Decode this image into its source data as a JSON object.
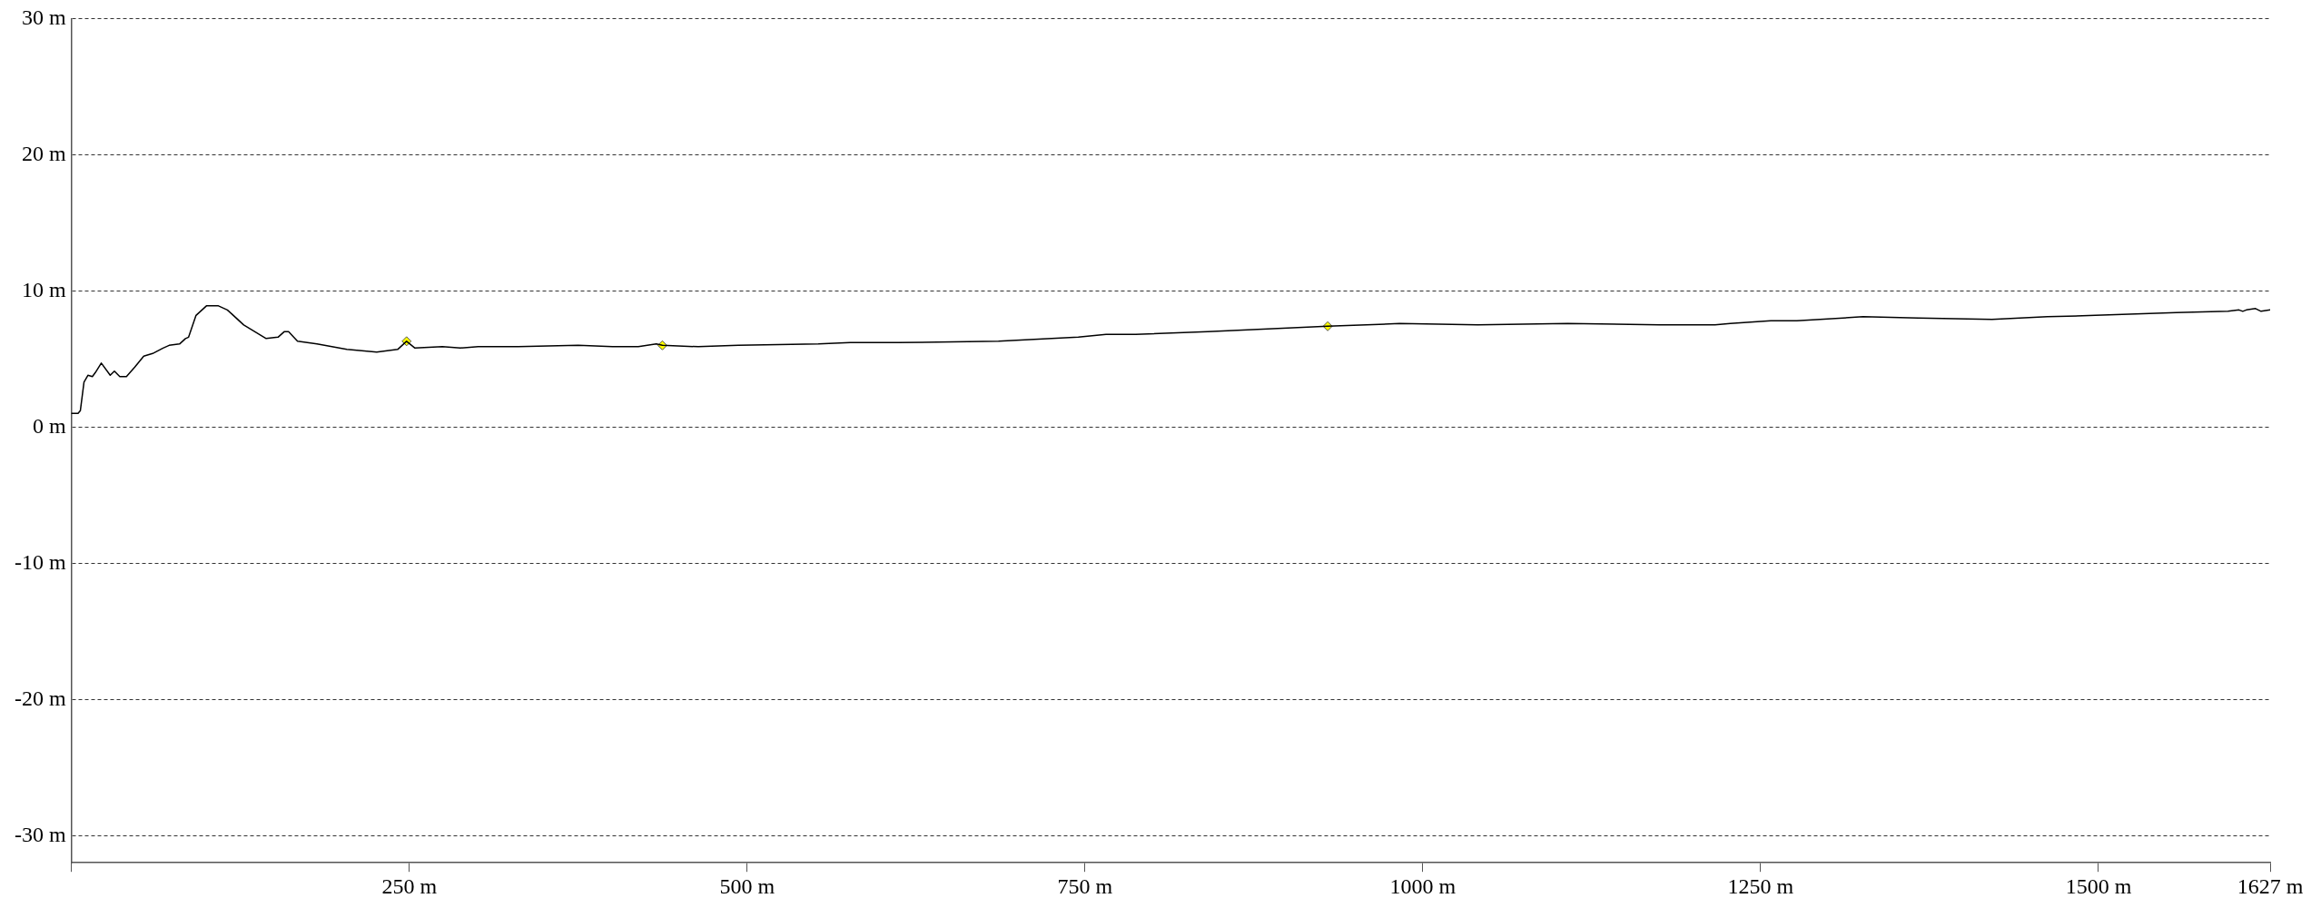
{
  "chart_data": {
    "type": "line",
    "xlim": [
      0,
      1627
    ],
    "ylim": [
      -32,
      30
    ],
    "xticks": [
      {
        "value": 0,
        "label": null
      },
      {
        "value": 250,
        "label": "250 m"
      },
      {
        "value": 500,
        "label": "500 m"
      },
      {
        "value": 750,
        "label": "750 m"
      },
      {
        "value": 1000,
        "label": "1000 m"
      },
      {
        "value": 1250,
        "label": "1250 m"
      },
      {
        "value": 1500,
        "label": "1500 m"
      },
      {
        "value": 1627,
        "label": "1627 m"
      }
    ],
    "yticks": [
      {
        "value": 30,
        "label": "30 m"
      },
      {
        "value": 20,
        "label": "20 m"
      },
      {
        "value": 10,
        "label": "10 m"
      },
      {
        "value": 0,
        "label": "0 m"
      },
      {
        "value": -10,
        "label": "-10 m"
      },
      {
        "value": -20,
        "label": "-20 m"
      },
      {
        "value": -30,
        "label": "-30 m"
      }
    ],
    "grid": "y",
    "legend": false,
    "marker": "none",
    "line_style": "solid",
    "series": [
      {
        "type": "line",
        "color": "#000000",
        "x": [
          0,
          4.9,
          6.6,
          9.3,
          12.2,
          15.5,
          17.7,
          22.1,
          28.7,
          31.8,
          35.8,
          40.7,
          46.9,
          53.5,
          60.1,
          67.8,
          72.3,
          80,
          84.4,
          86.7,
          92.2,
          99.9,
          108.8,
          115.4,
          127.5,
          144.1,
          152.9,
          157.4,
          160.7,
          167.3,
          181.7,
          203.8,
          225.9,
          241.4,
          248,
          254.2,
          274.5,
          287.8,
          301,
          330.6,
          375,
          400.3,
          419.5,
          432.8,
          437.3,
          463.9,
          493.4,
          552.7,
          576.3,
          611.9,
          686,
          745.1,
          765.6,
          787.5,
          840.8,
          929.6,
          982.8,
          1040.6,
          1107.2,
          1175.3,
          1216.2,
          1227.5,
          1257.5,
          1276.8,
          1325.7,
          1366.7,
          1421.2,
          1462.2,
          1497.6,
          1557.6,
          1595.8,
          1604,
          1606.7,
          1609.4,
          1616.2,
          1620.3,
          1627
        ],
        "values": [
          1.0,
          1.0,
          1.2,
          3.3,
          3.8,
          3.7,
          4.0,
          4.7,
          3.8,
          4.1,
          3.7,
          3.7,
          4.4,
          5.2,
          5.4,
          5.8,
          6.0,
          6.1,
          6.5,
          6.6,
          8.2,
          8.9,
          8.9,
          8.6,
          7.5,
          6.5,
          6.6,
          7.0,
          7.0,
          6.3,
          6.1,
          5.7,
          5.5,
          5.7,
          6.3,
          5.8,
          5.9,
          5.8,
          5.9,
          5.9,
          6.0,
          5.9,
          5.9,
          6.1,
          6.0,
          5.9,
          6.0,
          6.1,
          6.2,
          6.2,
          6.3,
          6.6,
          6.8,
          6.8,
          7.0,
          7.4,
          7.6,
          7.5,
          7.6,
          7.5,
          7.5,
          7.6,
          7.8,
          7.8,
          8.1,
          8.0,
          7.9,
          8.1,
          8.2,
          8.4,
          8.5,
          8.6,
          8.5,
          8.6,
          8.7,
          8.5,
          8.6
        ]
      },
      {
        "type": "scatter",
        "color": "#ffff00",
        "marker": "diamond",
        "x": [
          248,
          437.3,
          929.6
        ],
        "values": [
          6.3,
          6.0,
          7.4
        ]
      }
    ]
  }
}
